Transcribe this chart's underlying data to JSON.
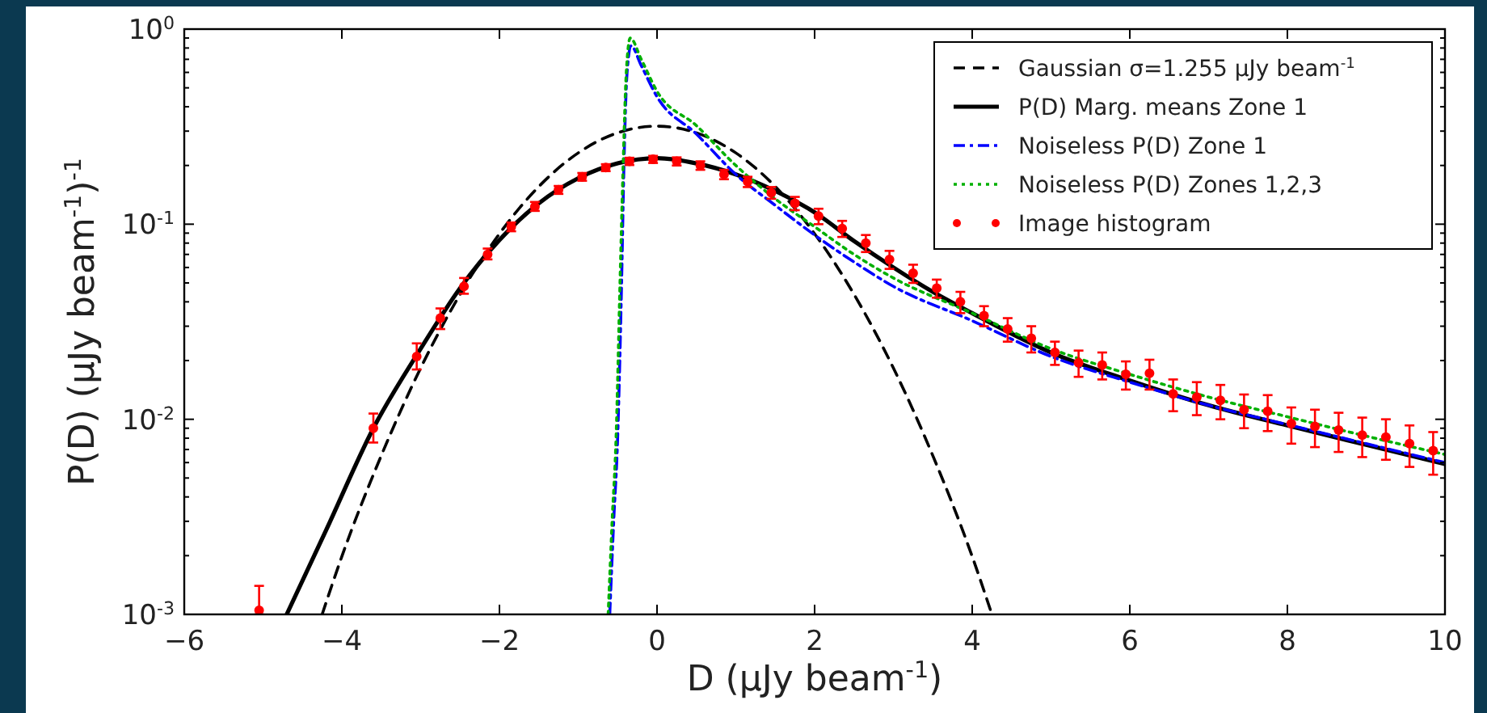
{
  "chart_data": {
    "type": "line",
    "xlabel": "D (μJy beam$^{-1}$)",
    "ylabel": "P(D) (μJy beam$^{-1}$)$^{-1}$",
    "xlim": [
      -6,
      10
    ],
    "xticks": [
      {
        "value": -6,
        "label": "−6"
      },
      {
        "value": -4,
        "label": "−4"
      },
      {
        "value": -2,
        "label": "−2"
      },
      0,
      2,
      4,
      6,
      8,
      10
    ],
    "ylim": [
      0.001,
      1
    ],
    "log": true,
    "yticks": [
      {
        "value": 0.001,
        "label": "10$^{-3}$"
      },
      {
        "value": 0.002,
        "label": null
      },
      {
        "value": 0.003,
        "label": null
      },
      {
        "value": 0.004,
        "label": null
      },
      {
        "value": 0.005,
        "label": null
      },
      {
        "value": 0.006,
        "label": null
      },
      {
        "value": 0.007,
        "label": null
      },
      {
        "value": 0.008,
        "label": null
      },
      {
        "value": 0.009,
        "label": null
      },
      {
        "value": 0.01,
        "label": "10$^{-2}$"
      },
      {
        "value": 0.02,
        "label": null
      },
      {
        "value": 0.03,
        "label": null
      },
      {
        "value": 0.04,
        "label": null
      },
      {
        "value": 0.05,
        "label": null
      },
      {
        "value": 0.06,
        "label": null
      },
      {
        "value": 0.07,
        "label": null
      },
      {
        "value": 0.08,
        "label": null
      },
      {
        "value": 0.09,
        "label": null
      },
      {
        "value": 0.1,
        "label": "10$^{-1}$"
      },
      {
        "value": 0.2,
        "label": null
      },
      {
        "value": 0.3,
        "label": null
      },
      {
        "value": 0.4,
        "label": null
      },
      {
        "value": 0.5,
        "label": null
      },
      {
        "value": 0.6,
        "label": null
      },
      {
        "value": 0.7,
        "label": null
      },
      {
        "value": 0.8,
        "label": null
      },
      {
        "value": 0.9,
        "label": null
      },
      {
        "value": 1,
        "label": "10$^{0}$"
      }
    ],
    "grid": false,
    "legend": "top right",
    "series": [
      {
        "name": "Gaussian σ=1.255 μJy beam$^{-1}$",
        "line_style": "dashed",
        "color": "#000000",
        "x": [
          -4.25,
          -4,
          -3.5,
          -3,
          -2.5,
          -2,
          -1.5,
          -1,
          -0.5,
          0,
          0.5,
          1,
          1.5,
          2,
          2.5,
          3,
          3.5,
          4,
          4.25
        ],
        "values": [
          0.001,
          0.00198,
          0.00651,
          0.0183,
          0.0437,
          0.0893,
          0.156,
          0.232,
          0.294,
          0.318,
          0.294,
          0.232,
          0.156,
          0.0893,
          0.0437,
          0.0183,
          0.00651,
          0.00198,
          0.001
        ]
      },
      {
        "name": "P(D) Marg. means Zone 1",
        "line_style": "solid",
        "color": "#000000",
        "x": [
          -4.7,
          -4.2,
          -3.6,
          -3,
          -2.5,
          -2,
          -1.5,
          -1,
          -0.5,
          0,
          0.5,
          1,
          1.5,
          2,
          2.5,
          3,
          3.5,
          4,
          5,
          6,
          7,
          8,
          9,
          10
        ],
        "values": [
          0.001,
          0.0027,
          0.009,
          0.023,
          0.047,
          0.083,
          0.128,
          0.172,
          0.205,
          0.218,
          0.205,
          0.18,
          0.148,
          0.115,
          0.082,
          0.06,
          0.045,
          0.035,
          0.022,
          0.0158,
          0.0118,
          0.0093,
          0.0074,
          0.0059
        ]
      },
      {
        "name": "Noiseless P(D) Zone 1",
        "line_style": "dashdot",
        "color": "#0000ff",
        "x": [
          -0.6,
          -0.55,
          -0.5,
          -0.45,
          -0.42,
          -0.38,
          -0.33,
          -0.2,
          0,
          0.5,
          1,
          1.5,
          2,
          2.5,
          3,
          4,
          5,
          6,
          7,
          8,
          9,
          10
        ],
        "values": [
          0.001,
          0.003,
          0.008,
          0.05,
          0.2,
          0.6,
          0.82,
          0.65,
          0.45,
          0.29,
          0.18,
          0.125,
          0.088,
          0.064,
          0.048,
          0.032,
          0.021,
          0.0155,
          0.0118,
          0.0094,
          0.0075,
          0.006
        ]
      },
      {
        "name": "Noiseless P(D) Zones 1,2,3",
        "line_style": "dotted",
        "color": "#00b000",
        "x": [
          -0.62,
          -0.57,
          -0.52,
          -0.47,
          -0.43,
          -0.39,
          -0.34,
          -0.2,
          0,
          0.5,
          1,
          1.5,
          2,
          2.5,
          3,
          4,
          5,
          6,
          7,
          8,
          9,
          10
        ],
        "values": [
          0.001,
          0.003,
          0.008,
          0.05,
          0.2,
          0.6,
          0.9,
          0.7,
          0.48,
          0.32,
          0.2,
          0.135,
          0.097,
          0.07,
          0.053,
          0.035,
          0.023,
          0.017,
          0.013,
          0.0103,
          0.0082,
          0.0066
        ]
      },
      {
        "name": "Image histogram",
        "type": "scatter",
        "marker": "circle",
        "color": "#ff0000",
        "x": [
          -5.05,
          -3.6,
          -3.05,
          -2.75,
          -2.45,
          -2.15,
          -1.85,
          -1.55,
          -1.25,
          -0.95,
          -0.65,
          -0.35,
          -0.05,
          0.25,
          0.55,
          0.85,
          1.15,
          1.45,
          1.75,
          2.05,
          2.35,
          2.65,
          2.95,
          3.25,
          3.55,
          3.85,
          4.15,
          4.45,
          4.75,
          5.05,
          5.35,
          5.65,
          5.95,
          6.25,
          6.55,
          6.85,
          7.15,
          7.45,
          7.75,
          8.05,
          8.35,
          8.65,
          8.95,
          9.25,
          9.55,
          9.85
        ],
        "values": [
          0.00105,
          0.009,
          0.021,
          0.033,
          0.048,
          0.07,
          0.097,
          0.123,
          0.15,
          0.175,
          0.195,
          0.21,
          0.215,
          0.21,
          0.2,
          0.18,
          0.165,
          0.145,
          0.128,
          0.11,
          0.095,
          0.08,
          0.066,
          0.056,
          0.047,
          0.04,
          0.034,
          0.029,
          0.026,
          0.022,
          0.0195,
          0.019,
          0.017,
          0.0172,
          0.0135,
          0.013,
          0.0125,
          0.0112,
          0.011,
          0.0095,
          0.0092,
          0.0088,
          0.0083,
          0.0081,
          0.0075,
          0.0069
        ],
        "errors": [
          [
            0.001,
            0.0014
          ],
          [
            0.0076,
            0.0107
          ],
          [
            0.018,
            0.0245
          ],
          [
            0.029,
            0.037
          ],
          [
            0.044,
            0.053
          ],
          [
            0.066,
            0.075
          ],
          [
            0.092,
            0.102
          ],
          [
            0.117,
            0.13
          ],
          [
            0.143,
            0.157
          ],
          [
            0.167,
            0.183
          ],
          [
            0.187,
            0.203
          ],
          [
            0.201,
            0.219
          ],
          [
            0.206,
            0.224
          ],
          [
            0.2,
            0.22
          ],
          [
            0.19,
            0.21
          ],
          [
            0.17,
            0.19
          ],
          [
            0.155,
            0.175
          ],
          [
            0.135,
            0.155
          ],
          [
            0.118,
            0.138
          ],
          [
            0.1,
            0.12
          ],
          [
            0.086,
            0.104
          ],
          [
            0.072,
            0.088
          ],
          [
            0.059,
            0.073
          ],
          [
            0.05,
            0.062
          ],
          [
            0.042,
            0.052
          ],
          [
            0.035,
            0.045
          ],
          [
            0.03,
            0.038
          ],
          [
            0.025,
            0.033
          ],
          [
            0.022,
            0.03
          ],
          [
            0.019,
            0.025
          ],
          [
            0.0165,
            0.0225
          ],
          [
            0.016,
            0.022
          ],
          [
            0.0142,
            0.0198
          ],
          [
            0.0142,
            0.0202
          ],
          [
            0.011,
            0.016
          ],
          [
            0.0105,
            0.0155
          ],
          [
            0.01,
            0.015
          ],
          [
            0.009,
            0.0134
          ],
          [
            0.0087,
            0.0133
          ],
          [
            0.0075,
            0.0115
          ],
          [
            0.0072,
            0.0112
          ],
          [
            0.0068,
            0.0108
          ],
          [
            0.0064,
            0.0102
          ],
          [
            0.0062,
            0.01
          ],
          [
            0.0057,
            0.0093
          ],
          [
            0.0052,
            0.0086
          ]
        ]
      }
    ]
  }
}
